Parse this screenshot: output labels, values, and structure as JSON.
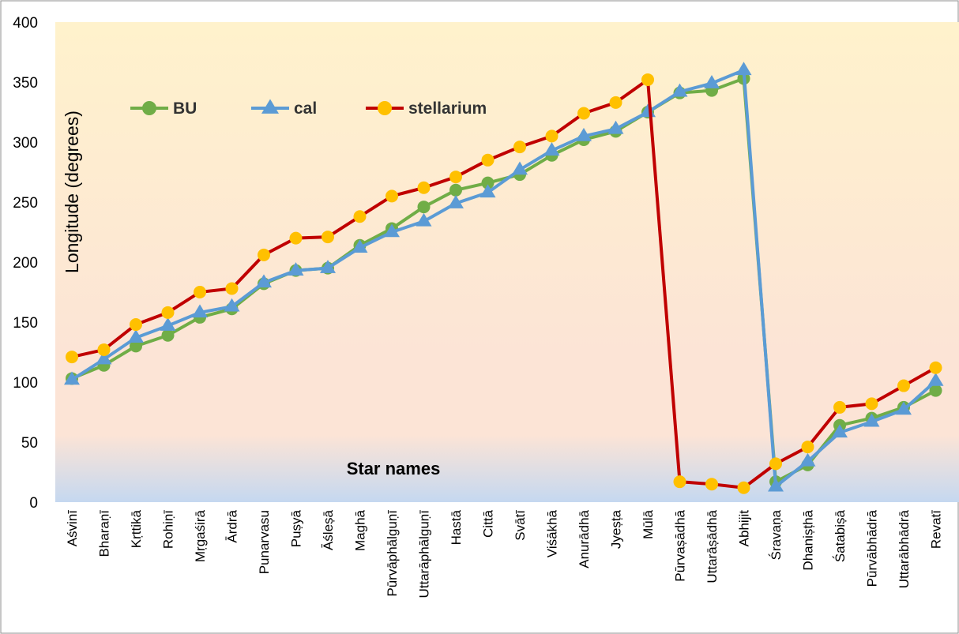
{
  "chart_data": {
    "type": "line",
    "title": "",
    "xlabel": "",
    "ylabel": "Longitude (degrees)",
    "annotation": "Star names",
    "ylim": [
      0,
      400
    ],
    "yticks": [
      0,
      50,
      100,
      150,
      200,
      250,
      300,
      350,
      400
    ],
    "grid": false,
    "legend_position": "top-left",
    "categories": [
      "Aśvinī",
      "Bharaṇī",
      "Kṛttikā",
      "Rohiṇī",
      "Mṛgaśirā",
      "Ārdrā",
      "Punarvasu",
      "Puṣyā",
      "Āśleṣā",
      "Maghā",
      "Pūrvāphālguṇī",
      "Uttarāphālguṇī",
      "Hastā",
      "Cittā",
      "Svātī",
      "Viśākhā",
      "Anurādhā",
      "Jyeṣṭa",
      "Mūlā",
      "Pūrvaṣādhā",
      "Uttarāṣādhā",
      "Abhijit",
      "Śravaṇa",
      "Dhaniṣṭhā",
      "Śatabiṣā",
      "Pūrvābhādrā",
      "Uttarābhādrā",
      "Revatī"
    ],
    "series": [
      {
        "name": "BU",
        "color": "#70ad47",
        "marker": "circle",
        "values": [
          103,
          114,
          130,
          139,
          154,
          161,
          182,
          193,
          195,
          214,
          228,
          246,
          260,
          266,
          273,
          289,
          302,
          309,
          325,
          341,
          343,
          353,
          17,
          31,
          64,
          70,
          79,
          93
        ]
      },
      {
        "name": "cal",
        "color": "#5b9bd5",
        "marker": "triangle",
        "values": [
          102,
          119,
          137,
          147,
          158,
          163,
          183,
          193,
          195,
          212,
          225,
          234,
          249,
          258,
          277,
          293,
          305,
          311,
          325,
          342,
          349,
          360,
          13,
          34,
          58,
          67,
          77,
          101
        ]
      },
      {
        "name": "stellarium",
        "color": "#c00000",
        "marker": "circle",
        "marker_color": "#ffc000",
        "values": [
          121,
          127,
          148,
          158,
          175,
          178,
          206,
          220,
          221,
          238,
          255,
          262,
          271,
          285,
          296,
          305,
          324,
          333,
          352,
          17,
          15,
          12,
          32,
          46,
          79,
          82,
          97,
          112
        ]
      }
    ],
    "colors": {
      "plot_bg_top": "#fff2cc",
      "plot_bg_mid": "#fce4d6",
      "plot_bg_bottom": "#c5d8f0"
    }
  }
}
